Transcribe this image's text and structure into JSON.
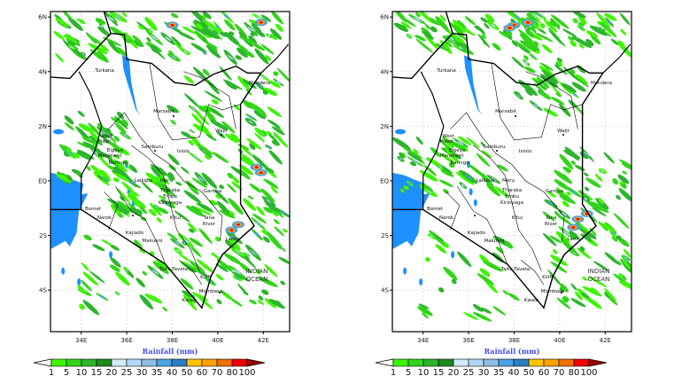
{
  "maps": [
    {
      "id": "left",
      "xlabel": "Rainfall (mm)"
    },
    {
      "id": "right",
      "xlabel": "Rainfall (mm)"
    }
  ],
  "axes": {
    "lat_ticks": [
      "6N",
      "4N",
      "2N",
      "EQ",
      "2S",
      "4S"
    ],
    "lon_ticks": [
      "34E",
      "36E",
      "38E",
      "40E",
      "42E"
    ]
  },
  "places": [
    "Turkana",
    "Marsabit",
    "Mandera",
    "Wajir",
    "West",
    "Pokot",
    "Samburu",
    "Isiolo",
    "Elgeyo",
    "Marakwet",
    "Baringo",
    "Laikipia",
    "Meru",
    "Garissa",
    "Tharaka",
    "Embu",
    "Kirinyaga",
    "Kitui",
    "Tana",
    "River",
    "Narok",
    "Bomet",
    "Kajiado",
    "Makueni",
    "Taita-Taveta",
    "Kilifi",
    "Mombasa",
    "Kwale",
    "Lamu",
    "INDIAN",
    "OCEAN"
  ],
  "colorbar": {
    "labels": [
      "1",
      "5",
      "10",
      "15",
      "20",
      "25",
      "30",
      "35",
      "40",
      "50",
      "60",
      "70",
      "80",
      "100"
    ],
    "colors": [
      "#3ef500",
      "#33d41a",
      "#2db52d",
      "#1e8a1e",
      "#d4eafc",
      "#b2d6f7",
      "#8ebfe2",
      "#4aa3e6",
      "#2a7fc1",
      "#ffc400",
      "#ffa200",
      "#ee7000",
      "#f00000"
    ],
    "under_color": "#ffffff",
    "over_color": "#9a0000"
  },
  "colors": {
    "water": "#1e90ff",
    "border": "#000000"
  }
}
